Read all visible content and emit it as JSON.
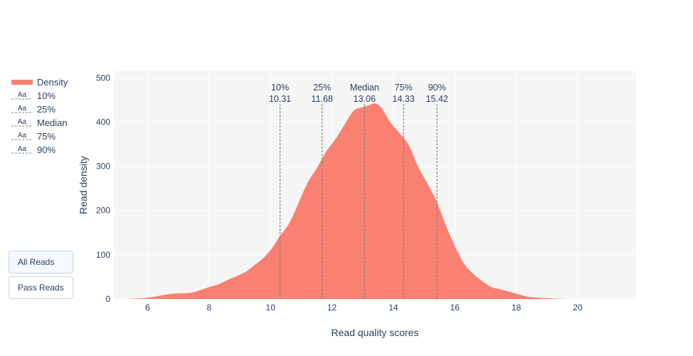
{
  "chart_data": {
    "type": "area",
    "xlabel": "Read quality scores",
    "ylabel": "Read density",
    "xlim": [
      4.9,
      21.9
    ],
    "ylim": [
      0,
      515
    ],
    "x_ticks": [
      6,
      8,
      10,
      12,
      14,
      16,
      18,
      20
    ],
    "y_ticks": [
      0,
      100,
      200,
      300,
      400,
      500
    ],
    "grid": true,
    "legend_position": "left",
    "series": [
      {
        "name": "Density",
        "color": "#fa8072",
        "points": [
          [
            5.3,
            0
          ],
          [
            5.6,
            1
          ],
          [
            5.9,
            2
          ],
          [
            6.2,
            5
          ],
          [
            6.5,
            9
          ],
          [
            6.8,
            12
          ],
          [
            7.1,
            13
          ],
          [
            7.4,
            14
          ],
          [
            7.7,
            20
          ],
          [
            8.0,
            27
          ],
          [
            8.3,
            33
          ],
          [
            8.6,
            43
          ],
          [
            8.9,
            52
          ],
          [
            9.2,
            62
          ],
          [
            9.5,
            78
          ],
          [
            9.8,
            95
          ],
          [
            10.1,
            120
          ],
          [
            10.3,
            142
          ],
          [
            10.6,
            170
          ],
          [
            10.9,
            215
          ],
          [
            11.2,
            262
          ],
          [
            11.5,
            295
          ],
          [
            11.8,
            332
          ],
          [
            12.1,
            360
          ],
          [
            12.4,
            393
          ],
          [
            12.7,
            425
          ],
          [
            13.0,
            434
          ],
          [
            13.2,
            438
          ],
          [
            13.4,
            442
          ],
          [
            13.6,
            433
          ],
          [
            13.9,
            400
          ],
          [
            14.2,
            375
          ],
          [
            14.5,
            348
          ],
          [
            14.8,
            300
          ],
          [
            15.1,
            262
          ],
          [
            15.4,
            222
          ],
          [
            15.7,
            168
          ],
          [
            16.0,
            120
          ],
          [
            16.3,
            80
          ],
          [
            16.6,
            57
          ],
          [
            16.9,
            40
          ],
          [
            17.2,
            27
          ],
          [
            17.5,
            22
          ],
          [
            17.8,
            16
          ],
          [
            18.1,
            10
          ],
          [
            18.4,
            5
          ],
          [
            18.7,
            3
          ],
          [
            19.0,
            2
          ],
          [
            19.3,
            1
          ],
          [
            19.6,
            0
          ]
        ]
      }
    ],
    "annotations": [
      {
        "name": "10%",
        "x": 10.31,
        "label": "10%",
        "value": "10.31"
      },
      {
        "name": "25%",
        "x": 11.68,
        "label": "25%",
        "value": "11.68"
      },
      {
        "name": "Median",
        "x": 13.06,
        "label": "Median",
        "value": "13.06"
      },
      {
        "name": "75%",
        "x": 14.33,
        "label": "75%",
        "value": "14.33"
      },
      {
        "name": "90%",
        "x": 15.42,
        "label": "90%",
        "value": "15.42"
      }
    ],
    "colors": {
      "plot_bg": "#f5f5f5",
      "grid": "#ffffff",
      "text": "#2a3f5f",
      "line": "#808080",
      "fill": "#fa8072"
    }
  },
  "legend": {
    "items": [
      {
        "name": "Density",
        "type": "fill",
        "color": "#fa8072"
      },
      {
        "name": "10%",
        "type": "text",
        "glyph": "Aa"
      },
      {
        "name": "25%",
        "type": "text",
        "glyph": "Aa"
      },
      {
        "name": "Median",
        "type": "text",
        "glyph": "Aa"
      },
      {
        "name": "75%",
        "type": "text",
        "glyph": "Aa"
      },
      {
        "name": "90%",
        "type": "text",
        "glyph": "Aa"
      }
    ]
  },
  "buttons": {
    "all_reads": "All Reads",
    "pass_reads": "Pass Reads"
  }
}
